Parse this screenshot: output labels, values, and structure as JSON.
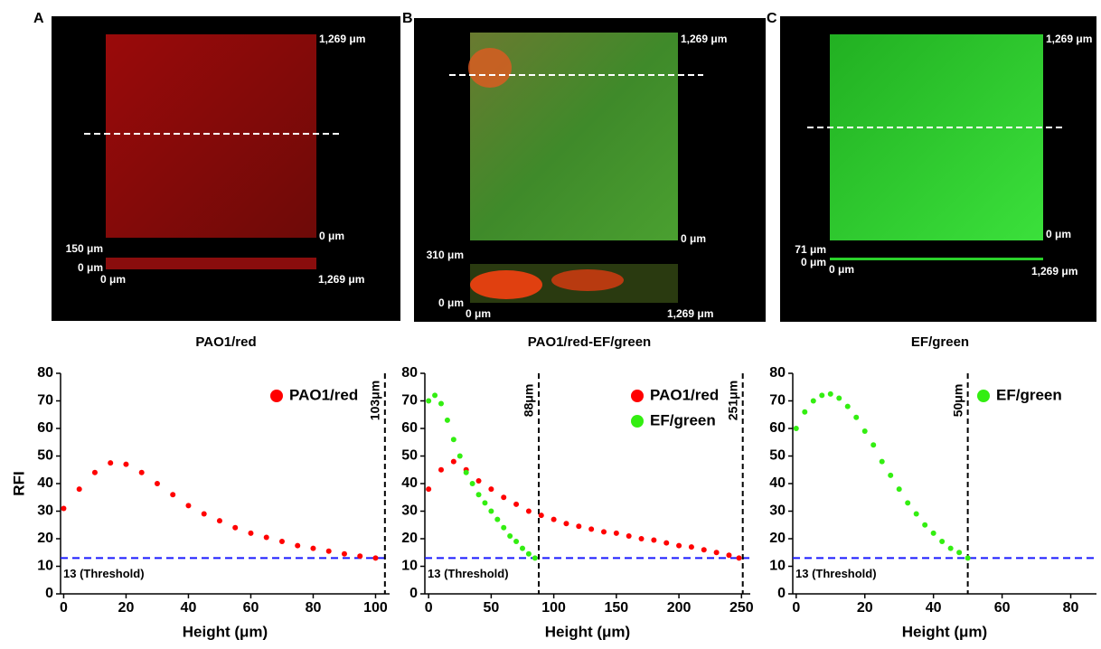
{
  "panels": [
    {
      "letter": "A",
      "caption": "PAO1/red",
      "labels": [
        "1,269 μm",
        "0 μm",
        "150 μm",
        "0 μm",
        "0 μm",
        "1,269 μm"
      ]
    },
    {
      "letter": "B",
      "caption": "PAO1/red-EF/green",
      "labels": [
        "1,269 μm",
        "0 μm",
        "310 μm",
        "0 μm",
        "0 μm",
        "1,269 μm"
      ]
    },
    {
      "letter": "C",
      "caption": "EF/green",
      "labels": [
        "1,269 μm",
        "0 μm",
        "71 μm",
        "0 μm",
        "0 μm",
        "1,269 μm"
      ]
    }
  ],
  "chart_data": [
    {
      "type": "scatter",
      "ylabel": "RFI",
      "xlabel": "Height (μm)",
      "xlim": [
        -1,
        104.5
      ],
      "ylim": [
        0,
        80
      ],
      "xticks": [
        0,
        20,
        40,
        60,
        80,
        100
      ],
      "yticks": [
        0,
        10,
        20,
        30,
        40,
        50,
        60,
        70,
        80
      ],
      "threshold": {
        "value": 13,
        "label": "13 (Threshold)"
      },
      "cutoffs": [
        {
          "value": 103,
          "label": "103μm"
        }
      ],
      "series": [
        {
          "name": "PAO1/red",
          "color": "#ff0000",
          "x": [
            0,
            5,
            10,
            15,
            20,
            25,
            30,
            35,
            40,
            45,
            50,
            55,
            60,
            65,
            70,
            75,
            80,
            85,
            90,
            95,
            100
          ],
          "values": [
            31,
            38,
            44,
            47.5,
            47,
            44,
            40,
            36,
            32,
            29,
            26.5,
            24,
            22,
            20.5,
            19,
            17.5,
            16.5,
            15.5,
            14.5,
            13.7,
            13
          ]
        }
      ]
    },
    {
      "type": "scatter",
      "xlabel": "Height (μm)",
      "xlim": [
        -3,
        257
      ],
      "ylim": [
        0,
        80
      ],
      "xticks": [
        0,
        50,
        100,
        150,
        200,
        250
      ],
      "yticks": [
        0,
        10,
        20,
        30,
        40,
        50,
        60,
        70,
        80
      ],
      "threshold": {
        "value": 13,
        "label": "13 (Threshold)"
      },
      "cutoffs": [
        {
          "value": 88,
          "label": "88μm"
        },
        {
          "value": 251,
          "label": "251μm"
        }
      ],
      "series": [
        {
          "name": "PAO1/red",
          "color": "#ff0000",
          "x": [
            0,
            10,
            20,
            30,
            40,
            50,
            60,
            70,
            80,
            90,
            100,
            110,
            120,
            130,
            140,
            150,
            160,
            170,
            180,
            190,
            200,
            210,
            220,
            230,
            240,
            248
          ],
          "values": [
            38,
            45,
            48,
            45,
            41,
            38,
            35,
            32.5,
            30,
            28.5,
            27,
            25.5,
            24.5,
            23.5,
            22.5,
            22,
            21,
            20,
            19.5,
            18.5,
            17.5,
            17,
            16,
            15,
            14,
            13
          ]
        },
        {
          "name": "EF/green",
          "color": "#33ee11",
          "x": [
            0,
            5,
            10,
            15,
            20,
            25,
            30,
            35,
            40,
            45,
            50,
            55,
            60,
            65,
            70,
            75,
            80,
            85
          ],
          "values": [
            70,
            72,
            69,
            63,
            56,
            50,
            44,
            40,
            36,
            33,
            30,
            27,
            24,
            21,
            19,
            16.5,
            14.5,
            13
          ]
        }
      ]
    },
    {
      "type": "scatter",
      "xlabel": "Height (μm)",
      "xlim": [
        -1,
        87.5
      ],
      "ylim": [
        0,
        80
      ],
      "xticks": [
        0,
        20,
        40,
        60,
        80
      ],
      "yticks": [
        0,
        10,
        20,
        30,
        40,
        50,
        60,
        70,
        80
      ],
      "threshold": {
        "value": 13,
        "label": "13 (Threshold)"
      },
      "cutoffs": [
        {
          "value": 50,
          "label": "50μm"
        }
      ],
      "series": [
        {
          "name": "EF/green",
          "color": "#33ee11",
          "x": [
            0,
            2.5,
            5,
            7.5,
            10,
            12.5,
            15,
            17.5,
            20,
            22.5,
            25,
            27.5,
            30,
            32.5,
            35,
            37.5,
            40,
            42.5,
            45,
            47.5,
            50
          ],
          "values": [
            60,
            66,
            70,
            72,
            72.5,
            71,
            68,
            64,
            59,
            54,
            48,
            43,
            38,
            33,
            29,
            25,
            22,
            19,
            16.5,
            15,
            13
          ]
        }
      ]
    }
  ]
}
